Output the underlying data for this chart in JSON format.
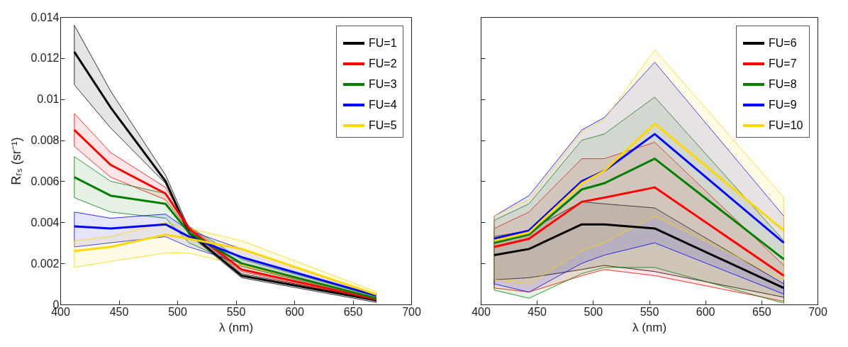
{
  "chart_data": [
    {
      "type": "line",
      "xlabel": "λ (nm)",
      "ylabel": "Rᵣₛ (sr⁻¹)",
      "x": [
        412,
        443,
        490,
        510,
        555,
        670
      ],
      "xlim": [
        400,
        700
      ],
      "xticks": [
        400,
        450,
        500,
        550,
        600,
        650,
        700
      ],
      "ylim": [
        0,
        0.014
      ],
      "yticks": [
        0,
        0.002,
        0.004,
        0.006,
        0.008,
        0.01,
        0.012,
        0.014
      ],
      "legend": "top right",
      "series": [
        {
          "name": "FU=1",
          "color": "#000000",
          "values": [
            0.0123,
            0.0096,
            0.006,
            0.0035,
            0.0014,
            0.0002
          ],
          "lower": [
            0.0107,
            0.0086,
            0.0059,
            0.0034,
            0.0013,
            0.0001
          ],
          "upper": [
            0.0136,
            0.0104,
            0.0063,
            0.0037,
            0.0015,
            0.00025
          ]
        },
        {
          "name": "FU=2",
          "color": "#ff0000",
          "values": [
            0.0085,
            0.0068,
            0.0054,
            0.0037,
            0.0017,
            0.00025
          ],
          "lower": [
            0.0077,
            0.0062,
            0.0051,
            0.0036,
            0.0016,
            0.00018
          ],
          "upper": [
            0.0093,
            0.0074,
            0.0057,
            0.0038,
            0.0019,
            0.0003
          ]
        },
        {
          "name": "FU=3",
          "color": "#008000",
          "values": [
            0.0062,
            0.0053,
            0.0049,
            0.0035,
            0.002,
            0.0003
          ],
          "lower": [
            0.0052,
            0.0045,
            0.0042,
            0.003,
            0.00185,
            0.00025
          ],
          "upper": [
            0.0072,
            0.006,
            0.0054,
            0.0038,
            0.0022,
            0.00037
          ]
        },
        {
          "name": "FU=4",
          "color": "#0000ff",
          "values": [
            0.0038,
            0.0037,
            0.0039,
            0.0033,
            0.0023,
            0.00043
          ],
          "lower": [
            0.0028,
            0.003,
            0.0033,
            0.0028,
            0.002,
            0.0003
          ],
          "upper": [
            0.0045,
            0.0042,
            0.0044,
            0.0036,
            0.0027,
            0.00049
          ]
        },
        {
          "name": "FU=5",
          "color": "#ffd700",
          "values": [
            0.0026,
            0.0028,
            0.0034,
            0.0032,
            0.0027,
            0.00049
          ],
          "lower": [
            0.0018,
            0.0021,
            0.0025,
            0.0025,
            0.0019,
            0.00037
          ],
          "upper": [
            0.0031,
            0.0033,
            0.004,
            0.0037,
            0.0031,
            0.00062
          ]
        }
      ]
    },
    {
      "type": "line",
      "xlabel": "λ (nm)",
      "x": [
        412,
        443,
        490,
        510,
        555,
        670
      ],
      "xlim": [
        400,
        700
      ],
      "xticks": [
        400,
        450,
        500,
        550,
        600,
        650,
        700
      ],
      "ylim": [
        0,
        0.014
      ],
      "yticks": [
        0,
        0.002,
        0.004,
        0.006,
        0.008,
        0.01,
        0.012,
        0.014
      ],
      "tick_labels": "x",
      "legend": "top right",
      "series": [
        {
          "name": "FU=6",
          "color": "#000000",
          "values": [
            0.0024,
            0.0027,
            0.0039,
            0.0039,
            0.0037,
            0.0008
          ],
          "lower": [
            0.0012,
            0.0013,
            0.0017,
            0.0019,
            0.0016,
            0.00035
          ],
          "upper": [
            0.0033,
            0.0036,
            0.005,
            0.0049,
            0.0047,
            0.001
          ]
        },
        {
          "name": "FU=7",
          "color": "#ff0000",
          "values": [
            0.0028,
            0.0032,
            0.005,
            0.0052,
            0.0057,
            0.0014
          ],
          "lower": [
            0.0008,
            0.0006,
            0.0014,
            0.0017,
            0.0014,
            0.00015
          ],
          "upper": [
            0.0037,
            0.0045,
            0.0071,
            0.0071,
            0.0079,
            0.0019
          ]
        },
        {
          "name": "FU=8",
          "color": "#008000",
          "values": [
            0.003,
            0.0034,
            0.0056,
            0.0059,
            0.0071,
            0.0022
          ],
          "lower": [
            0.0007,
            0.0003,
            0.0015,
            0.0018,
            0.0018,
            6e-05
          ],
          "upper": [
            0.0041,
            0.0049,
            0.008,
            0.0083,
            0.0101,
            0.0031
          ]
        },
        {
          "name": "FU=9",
          "color": "#0000ff",
          "values": [
            0.0032,
            0.0036,
            0.006,
            0.0065,
            0.0083,
            0.003
          ],
          "lower": [
            0.001,
            0.0006,
            0.002,
            0.0024,
            0.003,
            0.0005
          ],
          "upper": [
            0.0043,
            0.0053,
            0.0085,
            0.0091,
            0.0118,
            0.0043
          ]
        },
        {
          "name": "FU=10",
          "color": "#ffd700",
          "values": [
            0.0031,
            0.0035,
            0.0059,
            0.0065,
            0.0088,
            0.0036
          ],
          "lower": [
            0.0012,
            0.001,
            0.0026,
            0.003,
            0.0043,
            0.0012
          ],
          "upper": [
            0.0043,
            0.0051,
            0.0084,
            0.009,
            0.0124,
            0.0052
          ]
        }
      ]
    }
  ]
}
